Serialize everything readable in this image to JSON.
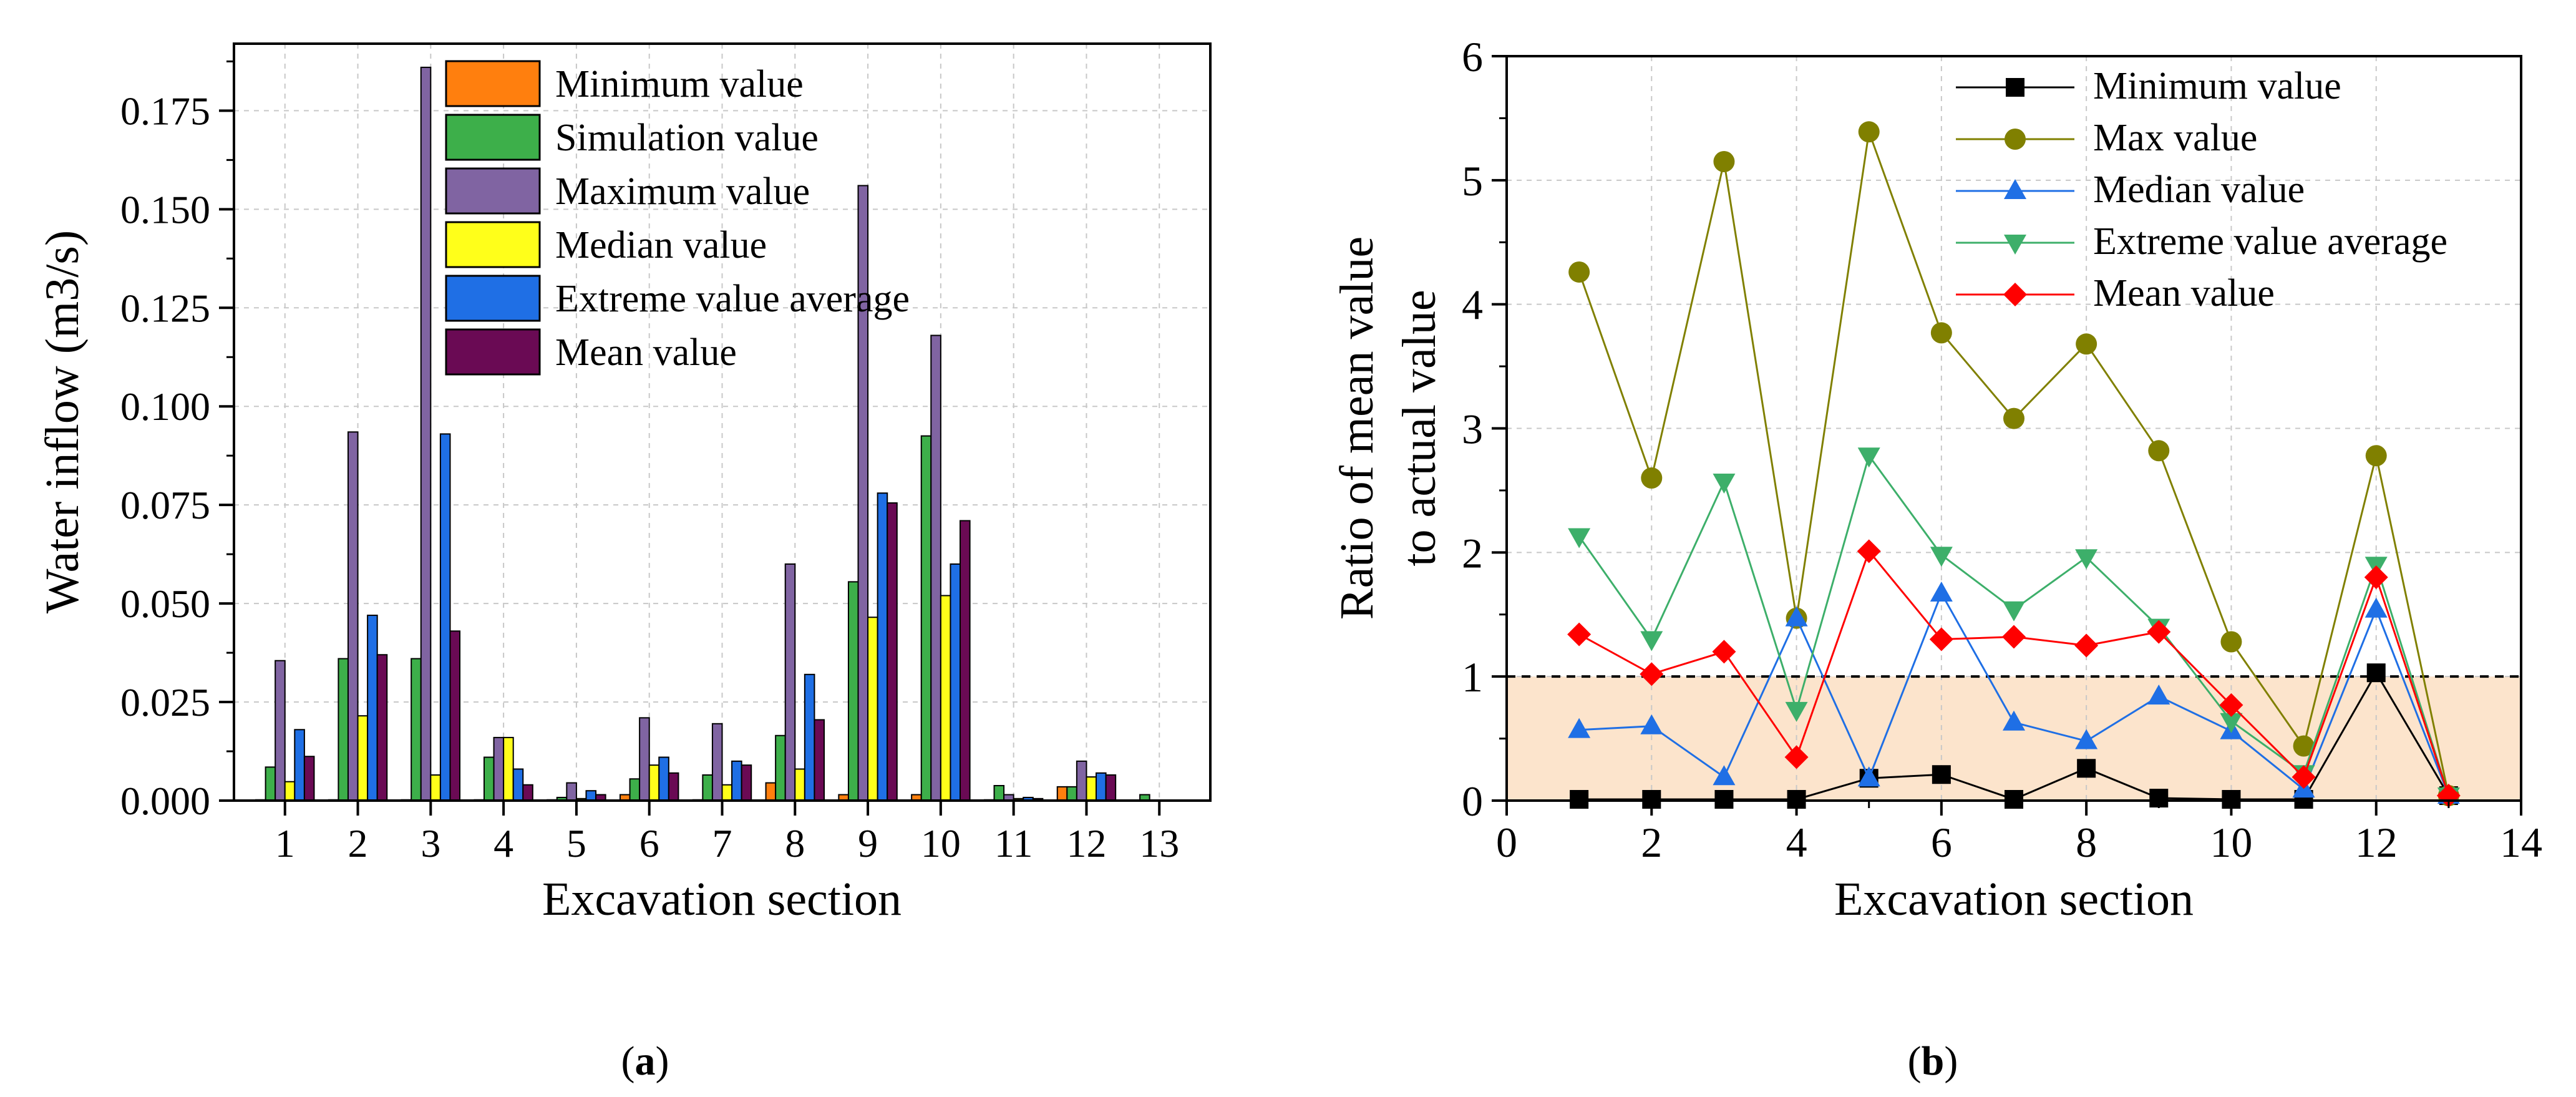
{
  "panel_labels": {
    "a_open": "(",
    "a_letter": "a",
    "a_close": ")",
    "b_open": "(",
    "b_letter": "b",
    "b_close": ")"
  },
  "chart_data": [
    {
      "type": "bar",
      "panel": "a",
      "xlabel": "Excavation section",
      "ylabel": "Water inflow (m3/s)",
      "categories": [
        "1",
        "2",
        "3",
        "4",
        "5",
        "6",
        "7",
        "8",
        "9",
        "10",
        "11",
        "12",
        "13"
      ],
      "ylim": [
        0,
        0.192
      ],
      "yticks": [
        0.0,
        0.025,
        0.05,
        0.075,
        0.1,
        0.125,
        0.15,
        0.175
      ],
      "ytick_labels": [
        "0.000",
        "0.025",
        "0.050",
        "0.075",
        "0.100",
        "0.125",
        "0.150",
        "0.175"
      ],
      "grid": true,
      "legend_position": "top-center",
      "series": [
        {
          "name": "Minimum value",
          "color": "#FF7F0E",
          "values": [
            0.0002,
            0.0002,
            0.0002,
            0.0002,
            0.0002,
            0.0015,
            0.0002,
            0.0045,
            0.0015,
            0.0015,
            0.0002,
            0.0035,
            0.0001
          ]
        },
        {
          "name": "Simulation value",
          "color": "#3DAF4A",
          "values": [
            0.0085,
            0.036,
            0.036,
            0.011,
            0.0008,
            0.0055,
            0.0065,
            0.0165,
            0.0555,
            0.0925,
            0.0038,
            0.0035,
            0.0015
          ]
        },
        {
          "name": "Maximum value",
          "color": "#8064A2",
          "values": [
            0.0355,
            0.0935,
            0.186,
            0.016,
            0.0045,
            0.021,
            0.0195,
            0.06,
            0.156,
            0.118,
            0.0015,
            0.01,
            0.0001
          ]
        },
        {
          "name": "Median value",
          "color": "#FFFF1A",
          "values": [
            0.0048,
            0.0215,
            0.0065,
            0.016,
            0.0005,
            0.009,
            0.004,
            0.008,
            0.0465,
            0.052,
            0.0005,
            0.006,
            0.0001
          ]
        },
        {
          "name": "Extreme value average",
          "color": "#1F6FE5",
          "values": [
            0.018,
            0.047,
            0.093,
            0.008,
            0.0025,
            0.011,
            0.01,
            0.032,
            0.078,
            0.06,
            0.0008,
            0.007,
            0.0001
          ]
        },
        {
          "name": "Mean value",
          "color": "#6A0A54",
          "values": [
            0.0112,
            0.037,
            0.043,
            0.004,
            0.0015,
            0.007,
            0.009,
            0.0205,
            0.0755,
            0.071,
            0.0005,
            0.0065,
            0.0001
          ]
        }
      ]
    },
    {
      "type": "line",
      "panel": "b",
      "xlabel": "Excavation section",
      "ylabel_line1": "Ratio of mean value",
      "ylabel_line2": "to actual value",
      "xlim": [
        0,
        14
      ],
      "ylim": [
        0,
        6
      ],
      "xticks": [
        0,
        2,
        4,
        6,
        8,
        10,
        12,
        14
      ],
      "xtick_labels": [
        "0",
        "2",
        "4",
        "6",
        "8",
        "10",
        "12",
        "14"
      ],
      "yticks": [
        0,
        1,
        2,
        3,
        4,
        5,
        6
      ],
      "ytick_labels": [
        "0",
        "1",
        "2",
        "3",
        "4",
        "5",
        "6"
      ],
      "grid": true,
      "reference_line": 1,
      "shaded_band": [
        0,
        1
      ],
      "legend_position": "top-right",
      "x": [
        1,
        2,
        3,
        4,
        5,
        6,
        7,
        8,
        9,
        10,
        11,
        12,
        13
      ],
      "series": [
        {
          "name": "Minimum value",
          "color": "#000000",
          "marker": "square",
          "values": [
            0.01,
            0.01,
            0.01,
            0.01,
            0.18,
            0.21,
            0.01,
            0.26,
            0.02,
            0.01,
            0.01,
            1.03,
            0.04
          ]
        },
        {
          "name": "Max value",
          "color": "#808000",
          "marker": "circle",
          "values": [
            4.26,
            2.6,
            5.15,
            1.47,
            5.39,
            3.77,
            3.08,
            3.68,
            2.82,
            1.28,
            0.44,
            2.78,
            0.04
          ]
        },
        {
          "name": "Median value",
          "color": "#1F6FE5",
          "marker": "triangle-up",
          "values": [
            0.57,
            0.6,
            0.19,
            1.47,
            0.18,
            1.67,
            0.63,
            0.48,
            0.84,
            0.56,
            0.09,
            1.54,
            0.04
          ]
        },
        {
          "name": "Extreme value average",
          "color": "#3DAF6A",
          "marker": "triangle-down",
          "values": [
            2.13,
            1.3,
            2.57,
            0.73,
            2.78,
            1.98,
            1.54,
            1.96,
            1.4,
            0.64,
            0.22,
            1.9,
            0.04
          ]
        },
        {
          "name": "Mean value",
          "color": "#FF0000",
          "marker": "diamond",
          "values": [
            1.34,
            1.02,
            1.2,
            0.35,
            2.01,
            1.3,
            1.32,
            1.25,
            1.36,
            0.77,
            0.19,
            1.8,
            0.04
          ]
        }
      ]
    }
  ]
}
